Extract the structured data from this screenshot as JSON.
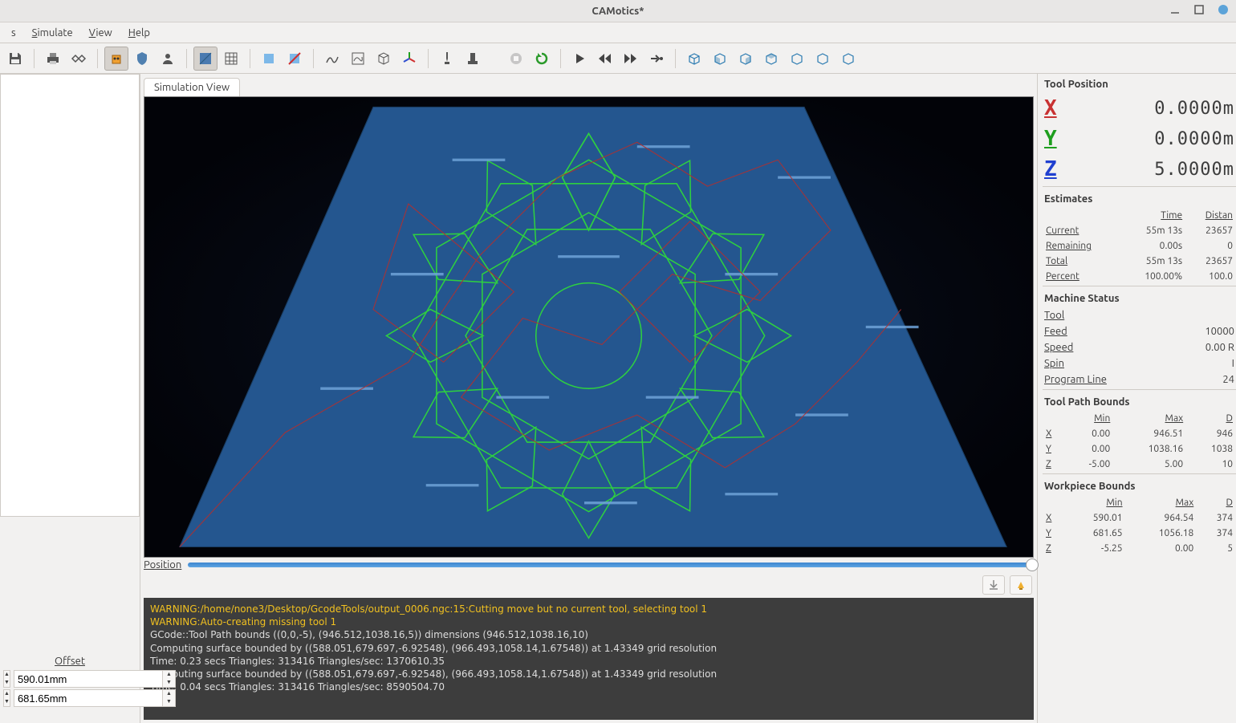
{
  "window": {
    "title": "CAMotics*"
  },
  "menu": {
    "file_suffix": "s",
    "simulate": "Simulate",
    "view": "View",
    "help": "Help"
  },
  "tabs": {
    "sim_view": "Simulation View"
  },
  "position_slider": {
    "label": "Position",
    "percent": 100
  },
  "offset": {
    "label": "Offset",
    "x": "590.01mm",
    "y": "681.65mm"
  },
  "tool_position": {
    "title": "Tool Position",
    "x": "0.0000m",
    "y": "0.0000m",
    "z": "5.0000m"
  },
  "estimates": {
    "title": "Estimates",
    "headers": {
      "time": "Time",
      "distance": "Distan"
    },
    "rows": {
      "current": {
        "label": "Current",
        "time": "55m 13s",
        "distance": "23657"
      },
      "remaining": {
        "label": "Remaining",
        "time": "0.00s",
        "distance": "0"
      },
      "total": {
        "label": "Total",
        "time": "55m 13s",
        "distance": "23657"
      },
      "percent": {
        "label": "Percent",
        "time": "100.00%",
        "distance": "100.0"
      }
    }
  },
  "machine_status": {
    "title": "Machine Status",
    "tool": {
      "label": "Tool",
      "value": ""
    },
    "feed": {
      "label": "Feed",
      "value": "10000"
    },
    "speed": {
      "label": "Speed",
      "value": "0.00 R"
    },
    "spin": {
      "label": "Spin",
      "value": "I"
    },
    "program_line": {
      "label": "Program Line",
      "value": "24"
    }
  },
  "tool_path_bounds": {
    "title": "Tool Path Bounds",
    "headers": {
      "min": "Min",
      "max": "Max",
      "delta": "D"
    },
    "x": {
      "min": "0.00",
      "max": "946.51",
      "delta": "946"
    },
    "y": {
      "min": "0.00",
      "max": "1038.16",
      "delta": "1038"
    },
    "z": {
      "min": "-5.00",
      "max": "5.00",
      "delta": "10"
    }
  },
  "workpiece_bounds": {
    "title": "Workpiece Bounds",
    "headers": {
      "min": "Min",
      "max": "Max",
      "delta": "D"
    },
    "x": {
      "min": "590.01",
      "max": "964.54",
      "delta": "374"
    },
    "y": {
      "min": "681.65",
      "max": "1056.18",
      "delta": "374"
    },
    "z": {
      "min": "-5.25",
      "max": "0.00",
      "delta": "5"
    }
  },
  "console": {
    "lines": [
      {
        "cls": "warn",
        "text": "WARNING:/home/none3/Desktop/GcodeTools/output_0006.ngc:15:Cutting move but no current tool, selecting tool 1"
      },
      {
        "cls": "warn",
        "text": "WARNING:Auto-creating missing tool 1"
      },
      {
        "cls": "",
        "text": "GCode::Tool Path bounds ((0,0,-5), (946.512,1038.16,5)) dimensions (946.512,1038.16,10)"
      },
      {
        "cls": "",
        "text": "Computing surface bounded by ((588.051,679.697,-6.92548), (966.493,1058.14,1.67548)) at 1.43349 grid resolution"
      },
      {
        "cls": "",
        "text": "Time: 0.23 secs Triangles: 313416 Triangles/sec: 1370610.35"
      },
      {
        "cls": "",
        "text": "Computing surface bounded by ((588.051,679.697,-6.92548), (966.493,1058.14,1.67548)) at 1.43349 grid resolution"
      },
      {
        "cls": "",
        "text": "Time: 0.04 secs Triangles: 313416 Triangles/sec: 8590504.70"
      }
    ]
  },
  "viewport": {
    "bg_color": "#04060c",
    "workpiece_color": "#24568f",
    "cut_path_color": "#2ed040",
    "rapid_path_color": "#b03030",
    "surface_line_color": "#6ea3d8"
  }
}
